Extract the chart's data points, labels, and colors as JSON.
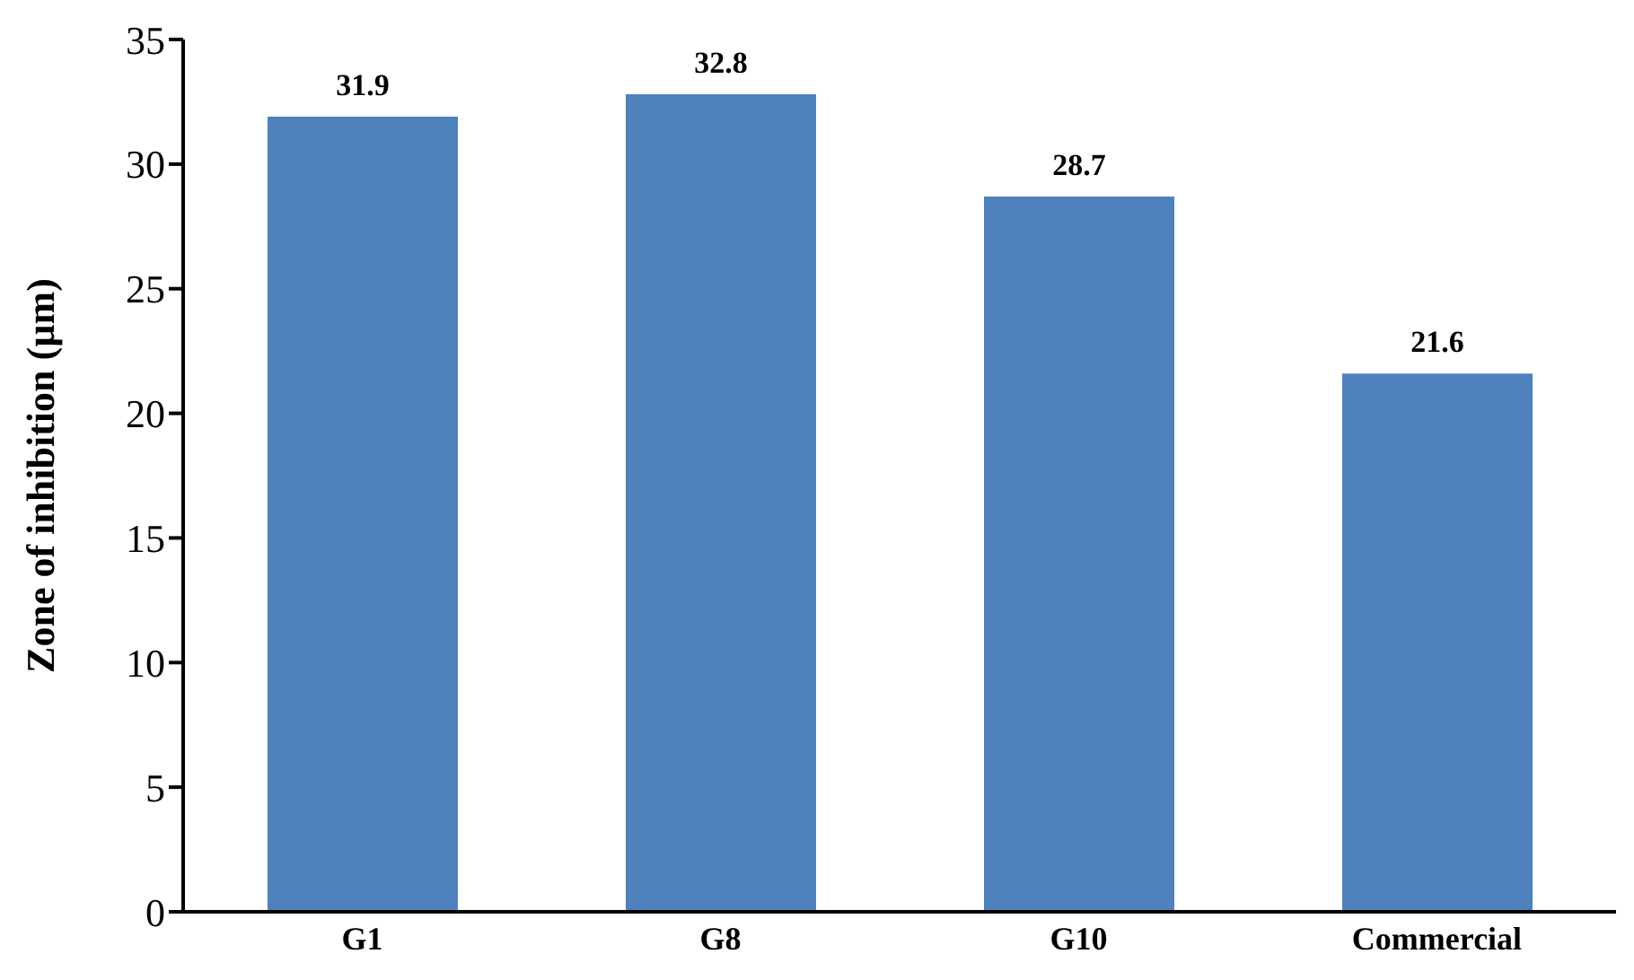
{
  "chart_data": {
    "type": "bar",
    "ylabel": "Zone of inhibition (µm)",
    "categories": [
      "G1",
      "G8",
      "G10",
      "Commercial"
    ],
    "values": [
      31.9,
      32.8,
      28.7,
      21.6
    ],
    "color": "#4f81bd",
    "ylim": [
      0,
      35
    ],
    "yticks": [
      0,
      5,
      10,
      15,
      20,
      25,
      30,
      35
    ],
    "data_labels": true
  }
}
